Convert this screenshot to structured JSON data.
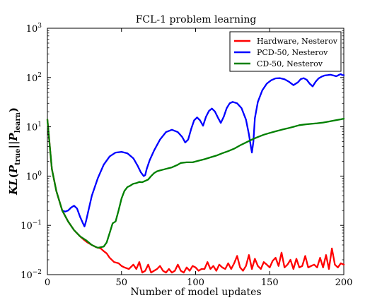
{
  "chart_data": {
    "type": "line",
    "title": "FCL-1 problem learning",
    "xlabel": "Number of model updates",
    "ylabel": "KL(P_true || P_learn)",
    "xlim": [
      0,
      200
    ],
    "ylim": [
      0.01,
      1000
    ],
    "yscale": "log",
    "x_ticks": [
      0,
      50,
      100,
      150,
      200
    ],
    "y_ticks": [
      {
        "value": 0.01,
        "base": "10",
        "exp": "−2"
      },
      {
        "value": 0.1,
        "base": "10",
        "exp": "−1"
      },
      {
        "value": 1,
        "base": "10",
        "exp": "0"
      },
      {
        "value": 10,
        "base": "10",
        "exp": "1"
      },
      {
        "value": 100,
        "base": "10",
        "exp": "2"
      },
      {
        "value": 1000,
        "base": "10",
        "exp": "3"
      }
    ],
    "legend_position": "top-right",
    "grid": false,
    "series": [
      {
        "name": "Hardware, Nesterov",
        "color": "#ff0000",
        "x": [
          0,
          3,
          6,
          10,
          14,
          18,
          22,
          25,
          27,
          30,
          33,
          36,
          38,
          40,
          42,
          45,
          48,
          50,
          52,
          55,
          58,
          60,
          62,
          64,
          66,
          68,
          70,
          72,
          74,
          76,
          78,
          80,
          82,
          84,
          86,
          88,
          90,
          92,
          94,
          96,
          98,
          100,
          102,
          104,
          106,
          108,
          110,
          112,
          114,
          116,
          118,
          120,
          122,
          124,
          126,
          128,
          130,
          132,
          134,
          136,
          138,
          140,
          142,
          144,
          146,
          148,
          150,
          152,
          154,
          156,
          158,
          160,
          162,
          164,
          166,
          168,
          170,
          172,
          174,
          176,
          178,
          180,
          182,
          184,
          186,
          188,
          190,
          192,
          194,
          196,
          198,
          200
        ],
        "y": [
          14,
          1.4,
          0.5,
          0.2,
          0.12,
          0.08,
          0.06,
          0.05,
          0.045,
          0.04,
          0.036,
          0.034,
          0.03,
          0.027,
          0.022,
          0.018,
          0.017,
          0.015,
          0.014,
          0.013,
          0.016,
          0.013,
          0.018,
          0.011,
          0.012,
          0.016,
          0.011,
          0.012,
          0.013,
          0.015,
          0.012,
          0.011,
          0.013,
          0.011,
          0.012,
          0.016,
          0.012,
          0.011,
          0.014,
          0.012,
          0.015,
          0.014,
          0.012,
          0.013,
          0.013,
          0.018,
          0.013,
          0.015,
          0.012,
          0.016,
          0.014,
          0.013,
          0.017,
          0.013,
          0.017,
          0.024,
          0.014,
          0.012,
          0.015,
          0.025,
          0.013,
          0.021,
          0.015,
          0.013,
          0.018,
          0.016,
          0.014,
          0.019,
          0.022,
          0.015,
          0.028,
          0.014,
          0.016,
          0.02,
          0.013,
          0.021,
          0.014,
          0.015,
          0.024,
          0.014,
          0.015,
          0.016,
          0.014,
          0.022,
          0.014,
          0.025,
          0.013,
          0.034,
          0.016,
          0.014,
          0.017,
          0.016
        ]
      },
      {
        "name": "PCD-50, Nesterov",
        "color": "#0000ff",
        "x": [
          10,
          12,
          14,
          16,
          18,
          20,
          22,
          24,
          25,
          26,
          28,
          30,
          34,
          38,
          42,
          46,
          50,
          54,
          58,
          61,
          63,
          65,
          66,
          67,
          69,
          72,
          76,
          80,
          84,
          88,
          91,
          93,
          95,
          97,
          99,
          101,
          103,
          105,
          107,
          109,
          111,
          113,
          115,
          117,
          119,
          121,
          123,
          125,
          128,
          131,
          134,
          136,
          137,
          138,
          139,
          140,
          142,
          145,
          148,
          151,
          154,
          157,
          160,
          163,
          166,
          169,
          171,
          173,
          175,
          177,
          179,
          181,
          183,
          185,
          187,
          189,
          191,
          193,
          195,
          197,
          198,
          199,
          200
        ],
        "y": [
          0.2,
          0.19,
          0.2,
          0.23,
          0.25,
          0.22,
          0.15,
          0.11,
          0.095,
          0.12,
          0.22,
          0.4,
          0.9,
          1.7,
          2.5,
          3.0,
          3.1,
          2.9,
          2.3,
          1.6,
          1.2,
          1.0,
          1.05,
          1.4,
          2.1,
          3.3,
          5.5,
          7.8,
          8.7,
          7.8,
          6.2,
          4.8,
          5.5,
          9,
          13.5,
          15.5,
          13.5,
          10.5,
          16,
          21,
          23.5,
          20.5,
          15.5,
          12,
          16,
          24,
          30,
          32,
          30,
          24,
          14,
          7,
          4.5,
          3,
          5,
          15,
          32,
          55,
          75,
          88,
          96,
          97,
          92,
          82,
          70,
          80,
          93,
          97,
          90,
          75,
          66,
          82,
          96,
          104,
          110,
          112,
          114,
          110,
          106,
          114,
          117,
          112,
          112
        ]
      },
      {
        "name": "CD-50, Nesterov",
        "color": "#008000",
        "x": [
          0,
          3,
          6,
          10,
          14,
          18,
          22,
          26,
          30,
          34,
          38,
          40,
          42,
          44,
          46,
          48,
          50,
          52,
          54,
          56,
          58,
          60,
          62,
          64,
          66,
          68,
          70,
          72,
          74,
          76,
          78,
          80,
          82,
          84,
          86,
          88,
          90,
          94,
          98,
          102,
          106,
          110,
          114,
          118,
          122,
          126,
          130,
          134,
          138,
          142,
          146,
          150,
          154,
          158,
          162,
          166,
          170,
          174,
          178,
          182,
          186,
          190,
          194,
          198,
          200
        ],
        "y": [
          14,
          1.4,
          0.5,
          0.2,
          0.12,
          0.08,
          0.06,
          0.05,
          0.04,
          0.035,
          0.037,
          0.045,
          0.07,
          0.11,
          0.12,
          0.2,
          0.35,
          0.5,
          0.6,
          0.64,
          0.7,
          0.72,
          0.76,
          0.75,
          0.8,
          0.85,
          1.0,
          1.15,
          1.25,
          1.3,
          1.35,
          1.4,
          1.45,
          1.5,
          1.6,
          1.7,
          1.85,
          1.9,
          1.9,
          2.05,
          2.2,
          2.4,
          2.6,
          2.9,
          3.2,
          3.6,
          4.2,
          4.8,
          5.5,
          6.2,
          6.9,
          7.5,
          8.1,
          8.7,
          9.3,
          10.0,
          10.8,
          11.2,
          11.5,
          11.8,
          12.2,
          12.8,
          13.5,
          14.2,
          14.6
        ]
      }
    ]
  }
}
